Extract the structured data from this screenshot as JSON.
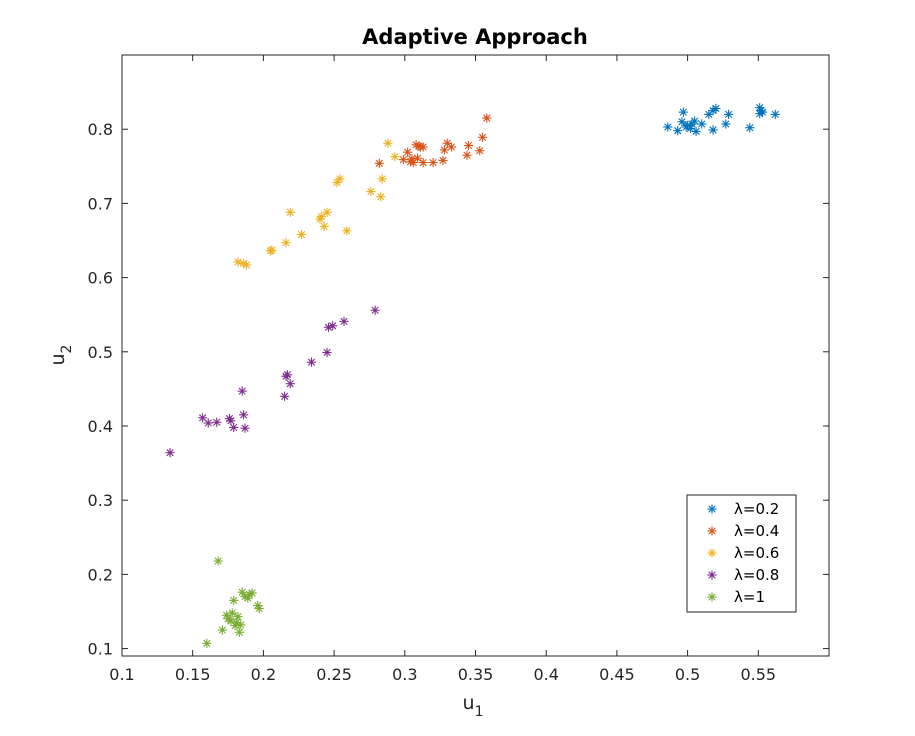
{
  "chart_data": {
    "type": "scatter",
    "title": "Adaptive Approach",
    "xlabel": {
      "main": "u",
      "sub": "1"
    },
    "ylabel": {
      "main": "u",
      "sub": "2"
    },
    "xlim": [
      0.1,
      0.6
    ],
    "ylim": [
      0.09,
      0.9
    ],
    "xticks": [
      "0.1",
      "0.15",
      "0.2",
      "0.25",
      "0.3",
      "0.35",
      "0.4",
      "0.45",
      "0.5",
      "0.55"
    ],
    "yticks": [
      "0.1",
      "0.2",
      "0.3",
      "0.4",
      "0.5",
      "0.6",
      "0.7",
      "0.8"
    ],
    "grid": false,
    "legend_position": "bottom-right",
    "marker": "asterisk",
    "series": [
      {
        "name": "λ=0.2",
        "color": "#0072BD",
        "points": [
          [
            0.486,
            0.803
          ],
          [
            0.493,
            0.798
          ],
          [
            0.496,
            0.81
          ],
          [
            0.497,
            0.823
          ],
          [
            0.499,
            0.803
          ],
          [
            0.5,
            0.805
          ],
          [
            0.502,
            0.801
          ],
          [
            0.503,
            0.807
          ],
          [
            0.505,
            0.811
          ],
          [
            0.506,
            0.797
          ],
          [
            0.51,
            0.807
          ],
          [
            0.515,
            0.82
          ],
          [
            0.518,
            0.799
          ],
          [
            0.518,
            0.825
          ],
          [
            0.52,
            0.828
          ],
          [
            0.527,
            0.807
          ],
          [
            0.529,
            0.82
          ],
          [
            0.544,
            0.802
          ],
          [
            0.551,
            0.821
          ],
          [
            0.551,
            0.829
          ],
          [
            0.552,
            0.825
          ],
          [
            0.562,
            0.82
          ],
          [
            0.553,
            0.823
          ]
        ]
      },
      {
        "name": "λ=0.4",
        "color": "#D95319",
        "points": [
          [
            0.282,
            0.754
          ],
          [
            0.299,
            0.759
          ],
          [
            0.302,
            0.769
          ],
          [
            0.304,
            0.756
          ],
          [
            0.305,
            0.76
          ],
          [
            0.306,
            0.755
          ],
          [
            0.308,
            0.779
          ],
          [
            0.309,
            0.761
          ],
          [
            0.31,
            0.777
          ],
          [
            0.311,
            0.776
          ],
          [
            0.313,
            0.755
          ],
          [
            0.313,
            0.776
          ],
          [
            0.32,
            0.755
          ],
          [
            0.327,
            0.758
          ],
          [
            0.328,
            0.772
          ],
          [
            0.33,
            0.781
          ],
          [
            0.333,
            0.776
          ],
          [
            0.344,
            0.765
          ],
          [
            0.345,
            0.778
          ],
          [
            0.353,
            0.771
          ],
          [
            0.355,
            0.789
          ],
          [
            0.358,
            0.815
          ]
        ]
      },
      {
        "name": "λ=0.6",
        "color": "#EDB120",
        "points": [
          [
            0.182,
            0.621
          ],
          [
            0.186,
            0.619
          ],
          [
            0.188,
            0.617
          ],
          [
            0.205,
            0.636
          ],
          [
            0.206,
            0.637
          ],
          [
            0.216,
            0.647
          ],
          [
            0.219,
            0.688
          ],
          [
            0.227,
            0.658
          ],
          [
            0.24,
            0.679
          ],
          [
            0.241,
            0.682
          ],
          [
            0.243,
            0.669
          ],
          [
            0.245,
            0.688
          ],
          [
            0.252,
            0.728
          ],
          [
            0.254,
            0.733
          ],
          [
            0.259,
            0.663
          ],
          [
            0.276,
            0.716
          ],
          [
            0.283,
            0.709
          ],
          [
            0.284,
            0.733
          ],
          [
            0.288,
            0.781
          ],
          [
            0.293,
            0.763
          ]
        ]
      },
      {
        "name": "λ=0.8",
        "color": "#7E2F8E",
        "points": [
          [
            0.134,
            0.364
          ],
          [
            0.157,
            0.411
          ],
          [
            0.161,
            0.404
          ],
          [
            0.167,
            0.405
          ],
          [
            0.176,
            0.41
          ],
          [
            0.177,
            0.407
          ],
          [
            0.179,
            0.398
          ],
          [
            0.185,
            0.447
          ],
          [
            0.186,
            0.415
          ],
          [
            0.187,
            0.397
          ],
          [
            0.215,
            0.44
          ],
          [
            0.216,
            0.467
          ],
          [
            0.217,
            0.469
          ],
          [
            0.219,
            0.457
          ],
          [
            0.234,
            0.486
          ],
          [
            0.245,
            0.499
          ],
          [
            0.246,
            0.533
          ],
          [
            0.249,
            0.535
          ],
          [
            0.257,
            0.541
          ],
          [
            0.279,
            0.556
          ]
        ]
      },
      {
        "name": "λ=1",
        "color": "#77AC30",
        "points": [
          [
            0.16,
            0.107
          ],
          [
            0.168,
            0.218
          ],
          [
            0.171,
            0.125
          ],
          [
            0.174,
            0.145
          ],
          [
            0.175,
            0.14
          ],
          [
            0.177,
            0.137
          ],
          [
            0.178,
            0.148
          ],
          [
            0.179,
            0.165
          ],
          [
            0.18,
            0.131
          ],
          [
            0.181,
            0.135
          ],
          [
            0.182,
            0.143
          ],
          [
            0.183,
            0.122
          ],
          [
            0.184,
            0.132
          ],
          [
            0.185,
            0.176
          ],
          [
            0.187,
            0.17
          ],
          [
            0.189,
            0.168
          ],
          [
            0.19,
            0.173
          ],
          [
            0.192,
            0.175
          ],
          [
            0.196,
            0.158
          ],
          [
            0.197,
            0.154
          ]
        ]
      }
    ]
  }
}
